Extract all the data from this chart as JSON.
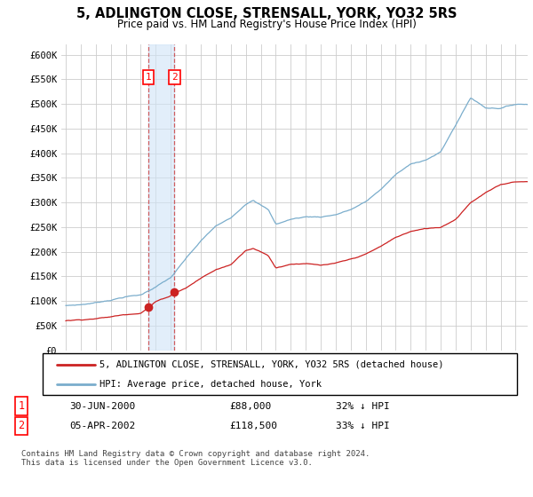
{
  "title": "5, ADLINGTON CLOSE, STRENSALL, YORK, YO32 5RS",
  "subtitle": "Price paid vs. HM Land Registry's House Price Index (HPI)",
  "ylabel_ticks": [
    "£0",
    "£50K",
    "£100K",
    "£150K",
    "£200K",
    "£250K",
    "£300K",
    "£350K",
    "£400K",
    "£450K",
    "£500K",
    "£550K",
    "£600K"
  ],
  "ylim": [
    0,
    620000
  ],
  "yticks": [
    0,
    50000,
    100000,
    150000,
    200000,
    250000,
    300000,
    350000,
    400000,
    450000,
    500000,
    550000,
    600000
  ],
  "legend_line1": "5, ADLINGTON CLOSE, STRENSALL, YORK, YO32 5RS (detached house)",
  "legend_line2": "HPI: Average price, detached house, York",
  "transaction1_date": "30-JUN-2000",
  "transaction1_price": "£88,000",
  "transaction1_hpi": "32% ↓ HPI",
  "transaction2_date": "05-APR-2002",
  "transaction2_price": "£118,500",
  "transaction2_hpi": "33% ↓ HPI",
  "footer": "Contains HM Land Registry data © Crown copyright and database right 2024.\nThis data is licensed under the Open Government Licence v3.0.",
  "line_color_red": "#cc2222",
  "line_color_blue": "#7aadcc",
  "vline1_x": 2000.5,
  "vline2_x": 2002.25,
  "marker1_x": 2000.5,
  "marker1_y": 88000,
  "marker2_x": 2002.25,
  "marker2_y": 118500,
  "xlim_left": 1994.7,
  "xlim_right": 2025.8,
  "x_start": 1995,
  "x_end": 2025
}
